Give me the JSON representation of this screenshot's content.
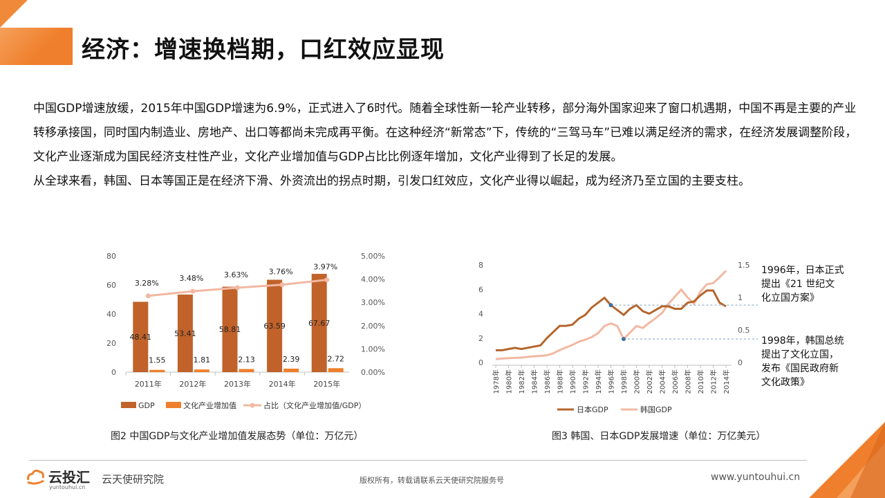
{
  "title": "经济：增速换档期，口红效应显现",
  "intro": {
    "p1": "中国GDP增速放缓，2015年中国GDP增速为6.9%，正式进入了6时代。随着全球性新一轮产业转移，部分海外国家迎来了窗口机遇期，中国不再是主要的产业转移承接国，同时国内制造业、房地产、出口等都尚未完成再平衡。在这种经济“新常态”下，传统的“三驾马车”已难以满足经济的需求，在经济发展调整阶段，文化产业逐渐成为国民经济支柱性产业，文化产业增加值与GDP占比比例逐年增加，文化产业得到了长足的发展。",
    "p2": "从全球来看，韩国、日本等国正是在经济下滑、外资流出的拐点时期，引发口红效应，文化产业得以崛起，成为经济乃至立国的主要支柱。"
  },
  "colors": {
    "accent": "#ef7f2c",
    "gdp": "#c0622a",
    "culture": "#ef7f2c",
    "ratio": "#f2b8a2",
    "japan": "#b5652c",
    "korea": "#f2b8a2"
  },
  "chart_data": [
    {
      "type": "bar",
      "categories": [
        "2011年",
        "2012年",
        "2013年",
        "2014年",
        "2015年"
      ],
      "series": [
        {
          "name": "GDP",
          "type": "bar",
          "axis": "left",
          "values": [
            48.41,
            53.41,
            58.81,
            63.59,
            67.67
          ]
        },
        {
          "name": "文化产业增加值",
          "type": "bar",
          "axis": "left",
          "values": [
            1.55,
            1.81,
            2.13,
            2.39,
            2.72
          ]
        },
        {
          "name": "占比（文化产业增加值/GDP）",
          "type": "line",
          "axis": "right",
          "values": [
            3.28,
            3.48,
            3.63,
            3.76,
            3.97
          ],
          "labels": [
            "3.28%",
            "3.48%",
            "3.63%",
            "3.76%",
            "3.97%"
          ]
        }
      ],
      "ylim": [
        0,
        80
      ],
      "yticks": [
        "0",
        "20",
        "40",
        "60",
        "80"
      ],
      "y2lim": [
        0,
        5
      ],
      "y2ticks": [
        "0.00%",
        "1.00%",
        "2.00%",
        "3.00%",
        "4.00%",
        "5.00%"
      ],
      "legend": "bottom",
      "caption": "图2 中国GDP与文化产业增加值发展态势（单位：万亿元）"
    },
    {
      "type": "line",
      "x": [
        1978,
        1979,
        1980,
        1981,
        1982,
        1983,
        1984,
        1985,
        1986,
        1987,
        1988,
        1989,
        1990,
        1991,
        1992,
        1993,
        1994,
        1995,
        1996,
        1997,
        1998,
        1999,
        2000,
        2001,
        2002,
        2003,
        2004,
        2005,
        2006,
        2007,
        2008,
        2009,
        2010,
        2011,
        2012,
        2013,
        2014
      ],
      "xticks": [
        "1978年",
        "1980年",
        "1982年",
        "1984年",
        "1986年",
        "1988年",
        "1990年",
        "1992年",
        "1994年",
        "1996年",
        "1998年",
        "2000年",
        "2002年",
        "2004年",
        "2006年",
        "2008年",
        "2010年",
        "2012年",
        "2014年"
      ],
      "series": [
        {
          "name": "日本GDP",
          "axis": "left",
          "values": [
            1.0,
            1.0,
            1.1,
            1.2,
            1.1,
            1.2,
            1.3,
            1.4,
            2.0,
            2.5,
            3.0,
            3.0,
            3.1,
            3.6,
            3.9,
            4.5,
            4.9,
            5.3,
            4.7,
            4.3,
            3.9,
            4.4,
            4.7,
            4.2,
            4.0,
            4.3,
            4.6,
            4.6,
            4.4,
            4.4,
            4.9,
            5.0,
            5.5,
            5.9,
            5.9,
            4.9,
            4.6
          ]
        },
        {
          "name": "韩国GDP",
          "axis": "right",
          "values": [
            0.05,
            0.06,
            0.065,
            0.07,
            0.075,
            0.085,
            0.095,
            0.1,
            0.11,
            0.14,
            0.19,
            0.23,
            0.27,
            0.32,
            0.35,
            0.39,
            0.45,
            0.56,
            0.6,
            0.56,
            0.36,
            0.46,
            0.56,
            0.53,
            0.61,
            0.68,
            0.76,
            0.9,
            1.01,
            1.12,
            1.0,
            0.9,
            1.09,
            1.2,
            1.22,
            1.31,
            1.41
          ]
        }
      ],
      "ylim": [
        0,
        8
      ],
      "yticks": [
        "0",
        "2",
        "4",
        "6",
        "8"
      ],
      "y2lim": [
        0,
        1.5
      ],
      "y2ticks": [
        "0",
        "0.5",
        "1",
        "1.5"
      ],
      "legend": "bottom",
      "caption": "图3 韩国、日本GDP发展增速（单位：万亿美元）",
      "annotations": [
        {
          "year": 1996,
          "series": "日本GDP",
          "text": "1996年，日本正式提出《21 世纪文化立国方案》"
        },
        {
          "year": 1998,
          "series": "韩国GDP",
          "text": "1998年，韩国总统提出了文化立国，发布《国民政府新文化政策》"
        }
      ]
    }
  ],
  "notes": {
    "japan_l1": "1996年，日本正式",
    "japan_l2": "提出《21 世纪文",
    "japan_l3": "化立国方案》",
    "korea_l1": "1998年，韩国总统",
    "korea_l2": "提出了文化立国，",
    "korea_l3": "发布《国民政府新",
    "korea_l4": "文化政策》"
  },
  "footer": {
    "logo": "云投汇",
    "logo_sub": "yuntouhui.cn",
    "org": "云天使研究院",
    "copyright": "版权所有，转载请联系云天使研究院服务号",
    "site": "www.yuntouhui.cn"
  }
}
